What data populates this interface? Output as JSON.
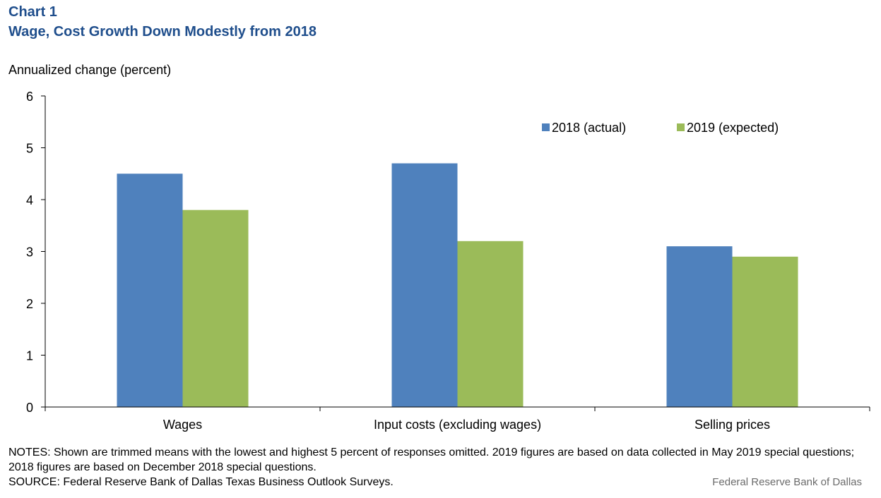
{
  "header": {
    "chart_number": "Chart 1",
    "title": "Wage, Cost Growth Down Modestly from 2018"
  },
  "chart_data": {
    "type": "bar",
    "title": "Wage, Cost Growth Down Modestly from 2018",
    "ylabel": "Annualized  change  (percent)",
    "xlabel": "",
    "categories": [
      "Wages",
      "Input costs (excluding wages)",
      "Selling prices"
    ],
    "series": [
      {
        "name": "2018 (actual)",
        "color": "#4f81bd",
        "values": [
          4.5,
          4.7,
          3.1
        ]
      },
      {
        "name": "2019 (expected)",
        "color": "#9bbb59",
        "values": [
          3.8,
          3.2,
          2.9
        ]
      }
    ],
    "ylim": [
      0,
      6
    ],
    "yticks": [
      "0",
      "1",
      "2",
      "3",
      "4",
      "5",
      "6"
    ],
    "grid": false,
    "legend_position": "top-right"
  },
  "footer": {
    "notes": "NOTES: Shown are trimmed means with the lowest and highest 5 percent of responses omitted. 2019 figures are based on data collected in May 2019 special questions; 2018 figures are based on December 2018 special questions.",
    "source": "SOURCE: Federal Reserve Bank of Dallas Texas Business Outlook Surveys.",
    "credit": "Federal Reserve  Bank of Dallas"
  }
}
